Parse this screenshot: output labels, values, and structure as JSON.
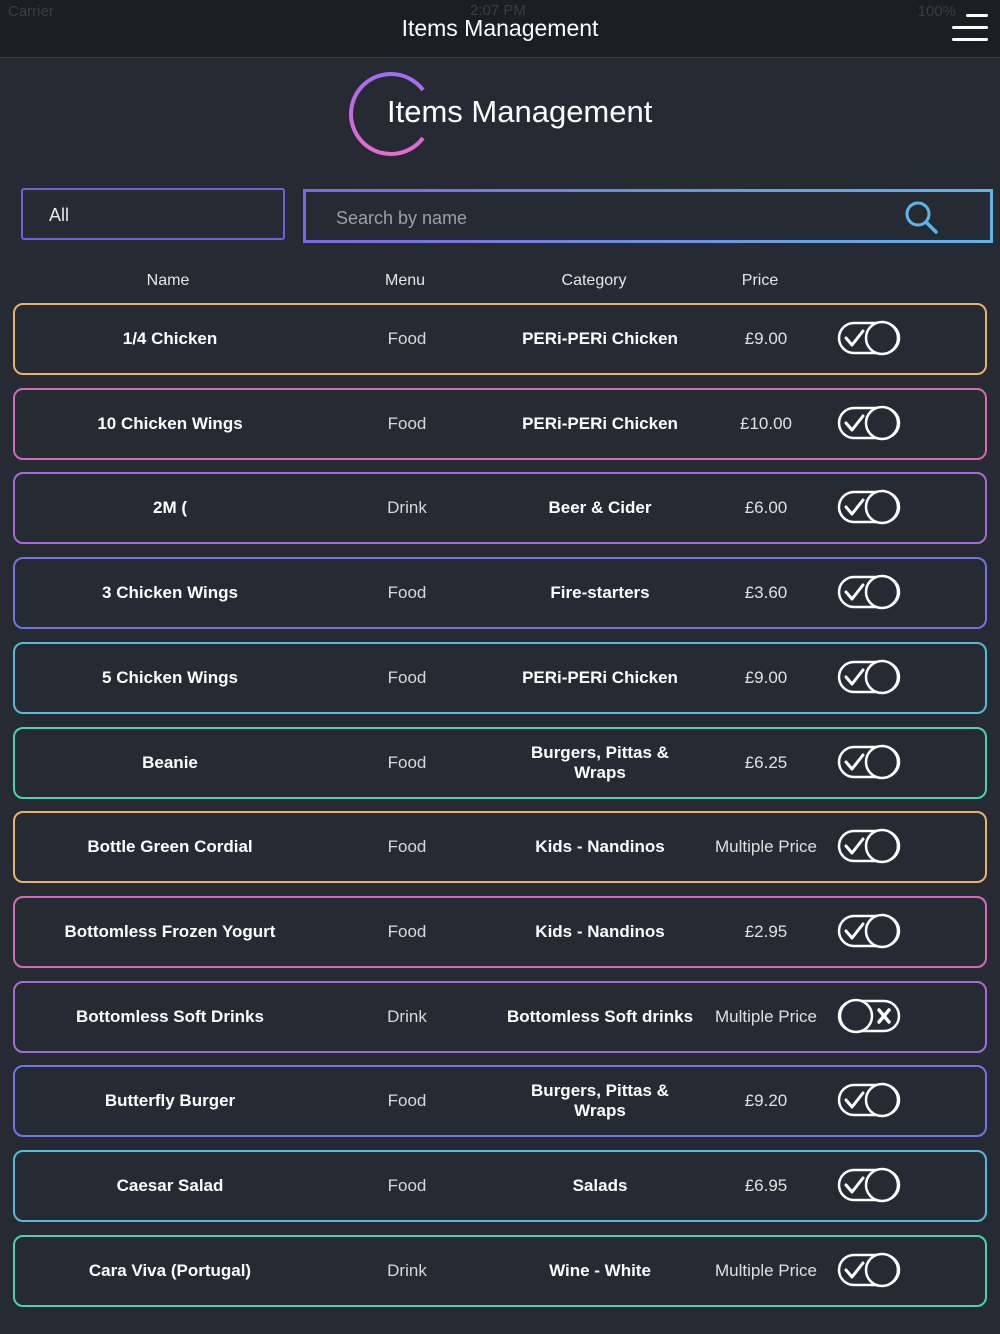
{
  "status_bar": {
    "carrier": "Carrier",
    "time": "2:07 PM",
    "battery": "100%"
  },
  "nav": {
    "title": "Items Management"
  },
  "header": {
    "title": "Items Management"
  },
  "filter": {
    "selected": "All"
  },
  "search": {
    "placeholder": "Search by name"
  },
  "columns": {
    "name": "Name",
    "menu": "Menu",
    "category": "Category",
    "price": "Price"
  },
  "colors": {
    "background": "#262b33",
    "nav": "#1b1e23",
    "accent_purple": "#7b67e0",
    "accent_blue": "#5fb5e8"
  },
  "items": [
    {
      "name": "1/4 Chicken",
      "menu": "Food",
      "category": "PERi-PERi Chicken",
      "price": "£9.00",
      "enabled": true,
      "border": "#e8b26a"
    },
    {
      "name": "10 Chicken Wings",
      "menu": "Food",
      "category": "PERi-PERi Chicken",
      "price": "£10.00",
      "enabled": true,
      "border": "#d46ab8"
    },
    {
      "name": "2M (",
      "menu": "Drink",
      "category": "Beer & Cider",
      "price": "£6.00",
      "enabled": true,
      "border": "#a66ad8"
    },
    {
      "name": "3 Chicken Wings",
      "menu": "Food",
      "category": "Fire-starters",
      "price": "£3.60",
      "enabled": true,
      "border": "#6f74e0"
    },
    {
      "name": "5 Chicken Wings",
      "menu": "Food",
      "category": "PERi-PERi Chicken",
      "price": "£9.00",
      "enabled": true,
      "border": "#5ab8d8"
    },
    {
      "name": "Beanie",
      "menu": "Food",
      "category": "Burgers, Pittas & Wraps",
      "price": "£6.25",
      "enabled": true,
      "border": "#4fd0b0"
    },
    {
      "name": "Bottle Green Cordial",
      "menu": "Food",
      "category": "Kids - Nandinos",
      "price": "Multiple Price",
      "enabled": true,
      "border": "#e8b26a"
    },
    {
      "name": "Bottomless Frozen Yogurt",
      "menu": "Food",
      "category": "Kids - Nandinos",
      "price": "£2.95",
      "enabled": true,
      "border": "#d46ab8"
    },
    {
      "name": "Bottomless Soft Drinks",
      "menu": "Drink",
      "category": "Bottomless Soft drinks",
      "price": "Multiple Price",
      "enabled": false,
      "border": "#a66ad8"
    },
    {
      "name": "Butterfly Burger",
      "menu": "Food",
      "category": "Burgers, Pittas & Wraps",
      "price": "£9.20",
      "enabled": true,
      "border": "#6f74e0"
    },
    {
      "name": "Caesar Salad",
      "menu": "Food",
      "category": "Salads",
      "price": "£6.95",
      "enabled": true,
      "border": "#5ab8d8"
    },
    {
      "name": "Cara Viva (Portugal)",
      "menu": "Drink",
      "category": "Wine - White",
      "price": "Multiple Price",
      "enabled": true,
      "border": "#4fd0b0"
    }
  ]
}
